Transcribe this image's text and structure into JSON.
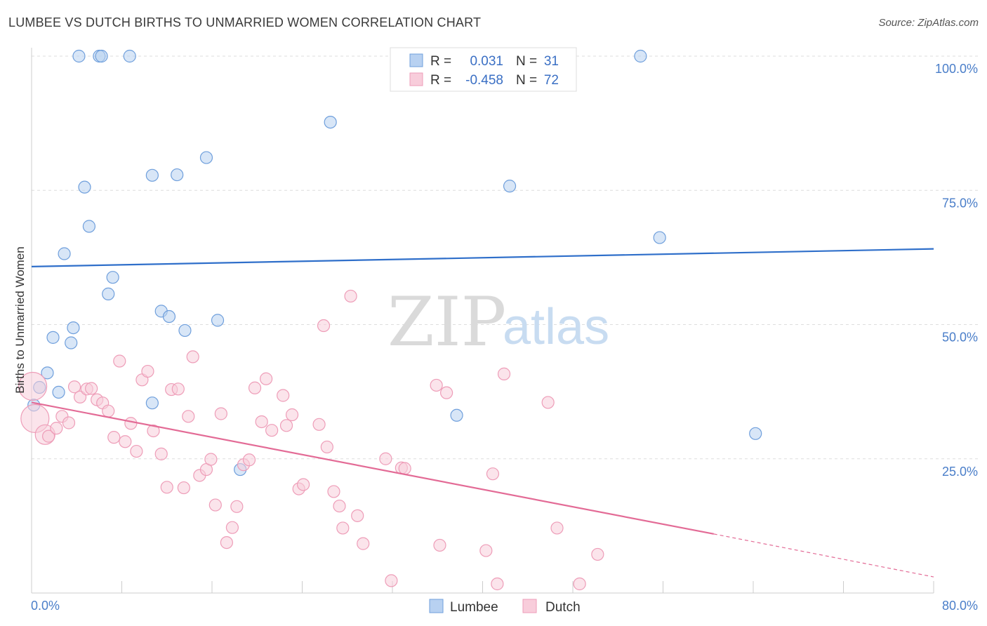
{
  "header": {
    "title": "LUMBEE VS DUTCH BIRTHS TO UNMARRIED WOMEN CORRELATION CHART",
    "source": "Source: ZipAtlas.com"
  },
  "watermark": {
    "zip": "ZIP",
    "atlas": "atlas"
  },
  "chart_data": {
    "type": "scatter",
    "title": "LUMBEE VS DUTCH BIRTHS TO UNMARRIED WOMEN CORRELATION CHART",
    "xlabel": "",
    "ylabel": "Births to Unmarried Women",
    "xlim": [
      0,
      80
    ],
    "ylim": [
      0,
      100
    ],
    "x_tick_labels": [
      "0.0%",
      "80.0%"
    ],
    "y_ticks": [
      25,
      50,
      75,
      100
    ],
    "y_tick_labels": [
      "25.0%",
      "50.0%",
      "75.0%",
      "100.0%"
    ],
    "grid": true,
    "legend_position": "top-center",
    "bottom_legend": [
      "Lumbee",
      "Dutch"
    ],
    "series": [
      {
        "name": "Lumbee",
        "color": "#6f9fdc",
        "fill": "#b8d1f1",
        "r_label": "R =",
        "r_value": "0.031",
        "n_label": "N =",
        "n_value": "31",
        "trend": {
          "x": [
            0,
            80
          ],
          "y": [
            60.8,
            64.1
          ],
          "color": "#2f6fca"
        },
        "points": [
          {
            "x": 0.2,
            "y": 35.0
          },
          {
            "x": 0.7,
            "y": 38.3
          },
          {
            "x": 1.4,
            "y": 41.0
          },
          {
            "x": 1.9,
            "y": 47.6
          },
          {
            "x": 2.4,
            "y": 37.4
          },
          {
            "x": 2.9,
            "y": 63.2
          },
          {
            "x": 3.5,
            "y": 46.6
          },
          {
            "x": 3.7,
            "y": 49.4
          },
          {
            "x": 4.2,
            "y": 100.0
          },
          {
            "x": 4.7,
            "y": 75.6
          },
          {
            "x": 5.1,
            "y": 68.3
          },
          {
            "x": 6.0,
            "y": 100.0
          },
          {
            "x": 6.2,
            "y": 100.0
          },
          {
            "x": 6.8,
            "y": 55.7
          },
          {
            "x": 7.2,
            "y": 58.8
          },
          {
            "x": 8.7,
            "y": 100.0
          },
          {
            "x": 10.7,
            "y": 77.8
          },
          {
            "x": 10.7,
            "y": 35.4
          },
          {
            "x": 11.5,
            "y": 52.5
          },
          {
            "x": 12.2,
            "y": 51.5
          },
          {
            "x": 12.9,
            "y": 77.9
          },
          {
            "x": 13.6,
            "y": 48.9
          },
          {
            "x": 15.5,
            "y": 81.1
          },
          {
            "x": 16.5,
            "y": 50.8
          },
          {
            "x": 18.5,
            "y": 23.0
          },
          {
            "x": 26.5,
            "y": 87.7
          },
          {
            "x": 37.7,
            "y": 33.1
          },
          {
            "x": 42.4,
            "y": 75.8
          },
          {
            "x": 54.0,
            "y": 100.0
          },
          {
            "x": 55.7,
            "y": 66.2
          },
          {
            "x": 64.2,
            "y": 29.7
          }
        ]
      },
      {
        "name": "Dutch",
        "color": "#ee9db8",
        "fill": "#f8cddb",
        "r_label": "R =",
        "r_value": "-0.458",
        "n_label": "N =",
        "n_value": "72",
        "trend": {
          "x": [
            0,
            60.5,
            80
          ],
          "y": [
            35.5,
            11.0,
            3.0
          ],
          "solid_until": 60.5,
          "color": "#e36b96"
        },
        "points": [
          {
            "x": 0.1,
            "y": 38.5,
            "r": 20
          },
          {
            "x": 0.3,
            "y": 32.5,
            "r": 20
          },
          {
            "x": 1.2,
            "y": 29.5,
            "r": 14
          },
          {
            "x": 1.5,
            "y": 29.2
          },
          {
            "x": 2.2,
            "y": 30.7
          },
          {
            "x": 2.7,
            "y": 32.9
          },
          {
            "x": 3.3,
            "y": 31.7
          },
          {
            "x": 3.8,
            "y": 38.4
          },
          {
            "x": 4.3,
            "y": 36.5
          },
          {
            "x": 4.9,
            "y": 38.0
          },
          {
            "x": 5.3,
            "y": 38.1
          },
          {
            "x": 5.8,
            "y": 36.0
          },
          {
            "x": 6.3,
            "y": 35.4
          },
          {
            "x": 6.8,
            "y": 33.9
          },
          {
            "x": 7.3,
            "y": 29.0
          },
          {
            "x": 7.8,
            "y": 43.2
          },
          {
            "x": 8.3,
            "y": 28.2
          },
          {
            "x": 8.8,
            "y": 31.6
          },
          {
            "x": 9.3,
            "y": 26.4
          },
          {
            "x": 9.8,
            "y": 39.7
          },
          {
            "x": 10.3,
            "y": 41.3
          },
          {
            "x": 10.8,
            "y": 30.2
          },
          {
            "x": 11.5,
            "y": 25.9
          },
          {
            "x": 12.0,
            "y": 19.7
          },
          {
            "x": 12.4,
            "y": 37.9
          },
          {
            "x": 13.0,
            "y": 38.0
          },
          {
            "x": 13.5,
            "y": 19.6
          },
          {
            "x": 13.9,
            "y": 32.9
          },
          {
            "x": 14.3,
            "y": 44.0
          },
          {
            "x": 14.9,
            "y": 21.9
          },
          {
            "x": 15.5,
            "y": 23.0
          },
          {
            "x": 15.9,
            "y": 24.9
          },
          {
            "x": 16.3,
            "y": 16.4
          },
          {
            "x": 16.8,
            "y": 33.4
          },
          {
            "x": 17.3,
            "y": 9.4
          },
          {
            "x": 17.8,
            "y": 12.2
          },
          {
            "x": 18.2,
            "y": 16.1
          },
          {
            "x": 18.8,
            "y": 23.9
          },
          {
            "x": 19.3,
            "y": 24.8
          },
          {
            "x": 19.8,
            "y": 38.2
          },
          {
            "x": 20.4,
            "y": 31.9
          },
          {
            "x": 20.8,
            "y": 39.9
          },
          {
            "x": 21.3,
            "y": 30.3
          },
          {
            "x": 22.3,
            "y": 36.8
          },
          {
            "x": 22.6,
            "y": 31.2
          },
          {
            "x": 23.1,
            "y": 33.2
          },
          {
            "x": 23.7,
            "y": 19.4
          },
          {
            "x": 24.1,
            "y": 20.2
          },
          {
            "x": 25.5,
            "y": 31.4
          },
          {
            "x": 25.9,
            "y": 49.8
          },
          {
            "x": 26.2,
            "y": 27.2
          },
          {
            "x": 26.8,
            "y": 18.9
          },
          {
            "x": 27.3,
            "y": 16.2
          },
          {
            "x": 27.6,
            "y": 12.1
          },
          {
            "x": 28.3,
            "y": 55.3
          },
          {
            "x": 28.9,
            "y": 14.4
          },
          {
            "x": 29.4,
            "y": 9.2
          },
          {
            "x": 31.4,
            "y": 25.0
          },
          {
            "x": 31.9,
            "y": 2.3
          },
          {
            "x": 32.8,
            "y": 23.3
          },
          {
            "x": 33.1,
            "y": 23.2
          },
          {
            "x": 35.9,
            "y": 38.7
          },
          {
            "x": 36.2,
            "y": 8.9
          },
          {
            "x": 36.8,
            "y": 37.3
          },
          {
            "x": 40.3,
            "y": 7.9
          },
          {
            "x": 40.9,
            "y": 22.2
          },
          {
            "x": 41.3,
            "y": 1.7
          },
          {
            "x": 41.9,
            "y": 40.8
          },
          {
            "x": 45.8,
            "y": 35.5
          },
          {
            "x": 46.6,
            "y": 12.1
          },
          {
            "x": 48.6,
            "y": 1.7
          },
          {
            "x": 50.2,
            "y": 7.2
          }
        ]
      }
    ]
  }
}
